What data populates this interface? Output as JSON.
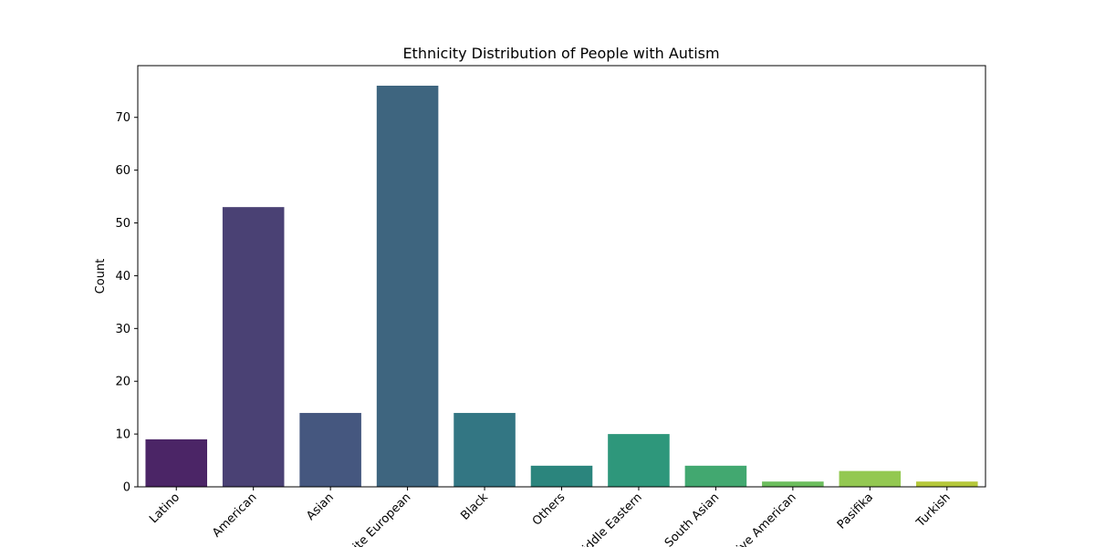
{
  "chart_data": {
    "type": "bar",
    "title": "Ethnicity Distribution of People with Autism",
    "xlabel": "",
    "ylabel": "Count",
    "categories": [
      "Latino",
      "American",
      "Asian",
      "White European",
      "Black",
      "Others",
      "Middle Eastern",
      "South Asian",
      "Native American",
      "Pasifika",
      "Turkish"
    ],
    "values": [
      9,
      53,
      14,
      76,
      14,
      4,
      10,
      4,
      1,
      3,
      1
    ],
    "colors": [
      "#4b2566",
      "#4a4174",
      "#45577f",
      "#3e657f",
      "#337683",
      "#2b857d",
      "#2e977b",
      "#42a870",
      "#6cbd5d",
      "#93c851",
      "#b5c73a"
    ],
    "yticks": [
      0,
      10,
      20,
      30,
      40,
      50,
      60,
      70
    ],
    "ylim": [
      0,
      79.8
    ],
    "grid": false,
    "legend": "none"
  }
}
